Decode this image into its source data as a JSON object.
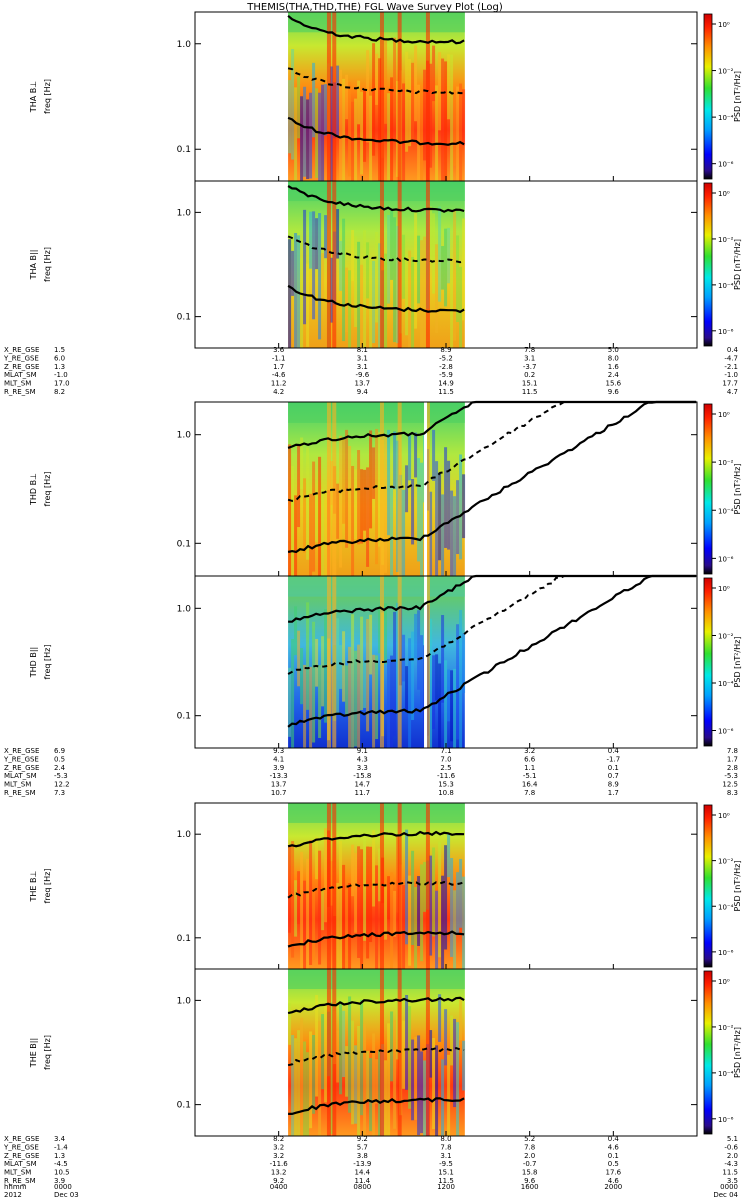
{
  "title": "THEMIS(THA,THD,THE) FGL Wave Survey Plot (Log)",
  "colors": {
    "frame": "#000000",
    "background": "#ffffff",
    "gap": "#ffffff"
  },
  "chart_data": {
    "type": "heatmap",
    "title": "THEMIS(THA,THD,THE) FGL Wave Survey Plot (Log)",
    "x_axis": {
      "label": "hhmm",
      "year": "2012",
      "tick_labels": [
        "0000",
        "0400",
        "0800",
        "1200",
        "1600",
        "2000",
        "0000"
      ],
      "date_labels": [
        "Dec 03",
        "Dec 04"
      ],
      "range_hours": [
        0,
        24
      ]
    },
    "y_axis": {
      "scale": "log",
      "range_hz": [
        0.05,
        2.0
      ],
      "tick_values": [
        0.1,
        1.0
      ],
      "tick_labels": [
        "0.1",
        "1.0"
      ]
    },
    "colorbar": {
      "label": "PSD [nT²/Hz]",
      "scale": "log",
      "tick_values": [
        1,
        0.01,
        0.0001,
        1e-06
      ],
      "tick_labels": [
        "10⁰",
        "10⁻²",
        "10⁻⁴",
        "10⁻⁶"
      ]
    },
    "probes": [
      {
        "id": "THA",
        "panels": [
          {
            "ylabel": "THA B⊥",
            "yunit": "freq [Hz]"
          },
          {
            "ylabel": "THA B||",
            "yunit": "freq [Hz]"
          }
        ],
        "data_coverage_hours": [
          4.45,
          12.9
        ],
        "gaps_hours": [],
        "ephemeris": [
          {
            "label": "X_RE_GSE",
            "values": [
              "1.5",
              "3.6",
              "8.1",
              "8.9",
              "7.8",
              "5.0",
              "0.4"
            ]
          },
          {
            "label": "Y_RE_GSE",
            "values": [
              "6.0",
              "-1.1",
              "3.1",
              "-5.2",
              "3.1",
              "8.0",
              "-4.7"
            ]
          },
          {
            "label": "Z_RE_GSE",
            "values": [
              "1.3",
              "1.7",
              "3.1",
              "-2.8",
              "-3.7",
              "1.6",
              "-2.1"
            ]
          },
          {
            "label": "MLAT_SM",
            "values": [
              "-1.0",
              "-4.6",
              "-9.6",
              "-5.9",
              "0.2",
              "2.4",
              "-1.0"
            ]
          },
          {
            "label": "MLT_SM",
            "values": [
              "17.0",
              "11.2",
              "13.7",
              "14.9",
              "15.1",
              "15.6",
              "17.7"
            ]
          },
          {
            "label": "R_RE_SM",
            "values": [
              "8.2",
              "4.2",
              "9.4",
              "11.5",
              "11.5",
              "9.6",
              "4.7"
            ]
          }
        ]
      },
      {
        "id": "THD",
        "panels": [
          {
            "ylabel": "THD B⊥",
            "yunit": "freq [Hz]"
          },
          {
            "ylabel": "THD B||",
            "yunit": "freq [Hz]"
          }
        ],
        "data_coverage_hours": [
          4.45,
          12.9
        ],
        "gaps_hours": [
          [
            10.95,
            11.05
          ]
        ],
        "ephemeris": [
          {
            "label": "X_RE_GSE",
            "values": [
              "6.9",
              "9.3",
              "9.1",
              "7.1",
              "3.2",
              "0.4",
              "7.8"
            ]
          },
          {
            "label": "Y_RE_GSE",
            "values": [
              "0.5",
              "4.1",
              "4.3",
              "7.0",
              "6.6",
              "-1.7",
              "1.7"
            ]
          },
          {
            "label": "Z_RE_GSE",
            "values": [
              "2.4",
              "3.9",
              "3.3",
              "2.5",
              "1.1",
              "0.1",
              "2.8"
            ]
          },
          {
            "label": "MLAT_SM",
            "values": [
              "-5.3",
              "-13.3",
              "-15.8",
              "-11.6",
              "-5.1",
              "0.7",
              "-5.3"
            ]
          },
          {
            "label": "MLT_SM",
            "values": [
              "12.2",
              "13.7",
              "14.7",
              "15.3",
              "16.4",
              "8.9",
              "12.5"
            ]
          },
          {
            "label": "R_RE_SM",
            "values": [
              "7.3",
              "10.7",
              "11.7",
              "10.8",
              "7.8",
              "1.7",
              "8.3"
            ]
          }
        ]
      },
      {
        "id": "THE",
        "panels": [
          {
            "ylabel": "THE B⊥",
            "yunit": "freq [Hz]"
          },
          {
            "ylabel": "THE B||",
            "yunit": "freq [Hz]"
          }
        ],
        "data_coverage_hours": [
          4.45,
          12.9
        ],
        "gaps_hours": [],
        "ephemeris": [
          {
            "label": "X_RE_GSE",
            "values": [
              "3.4",
              "8.2",
              "9.2",
              "8.0",
              "5.2",
              "0.4",
              "5.1"
            ]
          },
          {
            "label": "Y_RE_GSE",
            "values": [
              "-1.4",
              "3.2",
              "5.7",
              "7.8",
              "7.8",
              "4.6",
              "-0.6"
            ]
          },
          {
            "label": "Z_RE_GSE",
            "values": [
              "1.3",
              "3.2",
              "3.8",
              "3.1",
              "2.0",
              "0.1",
              "2.0"
            ]
          },
          {
            "label": "MLAT_SM",
            "values": [
              "-4.5",
              "-11.6",
              "-13.9",
              "-9.5",
              "-0.7",
              "0.5",
              "-4.3"
            ]
          },
          {
            "label": "MLT_SM",
            "values": [
              "10.5",
              "13.2",
              "14.4",
              "15.1",
              "15.8",
              "17.6",
              "11.5"
            ]
          },
          {
            "label": "R_RE_SM",
            "values": [
              "3.9",
              "9.2",
              "11.4",
              "11.5",
              "9.6",
              "4.6",
              "3.5"
            ]
          }
        ]
      }
    ]
  }
}
